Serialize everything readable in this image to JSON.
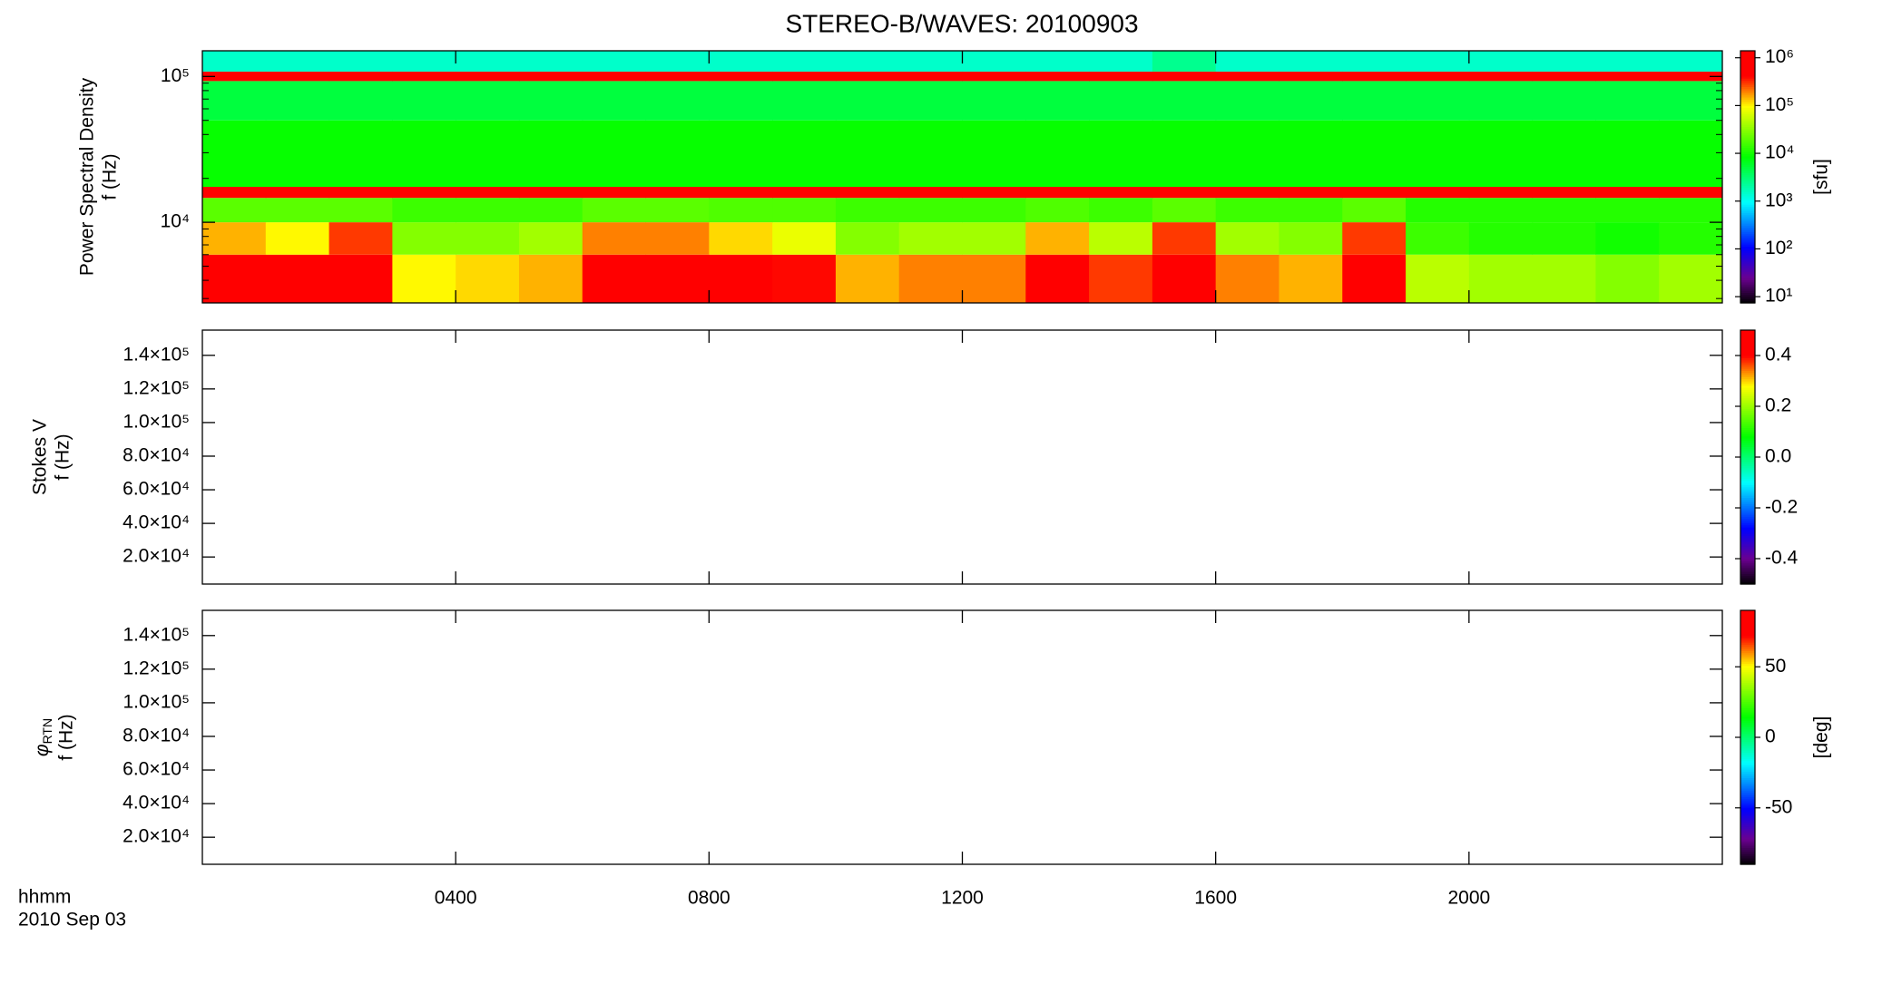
{
  "title": "STEREO-B/WAVES: 20100903",
  "x_title": "hhmm",
  "date": "2010 Sep 03",
  "chart_data": [
    {
      "type": "heatmap",
      "ylabel": [
        "Power Spectral Density",
        "f (Hz)"
      ],
      "xlim": [
        0,
        24
      ],
      "xticks": [
        4,
        8,
        12,
        16,
        20
      ],
      "ylim": [
        2800,
        150000
      ],
      "ylog": true,
      "yticks": [
        {
          "value": 10000,
          "label": "10⁴"
        },
        {
          "value": 100000,
          "label": "10⁵"
        }
      ],
      "yminorticks": [
        3000,
        4000,
        5000,
        6000,
        7000,
        8000,
        9000,
        20000,
        30000,
        40000,
        50000,
        60000,
        70000,
        80000,
        90000
      ],
      "colormap": "rainbow",
      "zlim": [
        7.4,
        1400000
      ],
      "zlog": true,
      "zticks": [
        {
          "value": 10,
          "label": "10¹"
        },
        {
          "value": 100,
          "label": "10²"
        },
        {
          "value": 1000,
          "label": "10³"
        },
        {
          "value": 10000,
          "label": "10⁴"
        },
        {
          "value": 100000,
          "label": "10⁵"
        },
        {
          "value": 1000000,
          "label": "10⁶"
        }
      ],
      "colorbar_label": "[sfu]",
      "time_bins": [
        0,
        1,
        2,
        3,
        4,
        5,
        6,
        7,
        8,
        9,
        10,
        11,
        12,
        13,
        14,
        15,
        16,
        17,
        18,
        19,
        20,
        21,
        22,
        23,
        24
      ],
      "freq_bins": [
        2800,
        6000,
        10000,
        14700,
        17500,
        50000,
        93000,
        108000,
        150000
      ],
      "values": [
        [
          500000,
          500000,
          600000,
          100000,
          120000,
          150000,
          600000,
          600000,
          500000,
          400000,
          150000,
          200000,
          200000,
          500000,
          300000,
          600000,
          200000,
          150000,
          600000,
          50000,
          40000,
          40000,
          30000,
          40000
        ],
        [
          150000,
          100000,
          300000,
          30000,
          30000,
          40000,
          200000,
          200000,
          120000,
          80000,
          30000,
          40000,
          40000,
          150000,
          50000,
          300000,
          40000,
          30000,
          300000,
          15000,
          12000,
          12000,
          10000,
          12000
        ],
        [
          20000,
          20000,
          20000,
          15000,
          15000,
          15000,
          20000,
          20000,
          18000,
          18000,
          15000,
          15000,
          15000,
          18000,
          15000,
          20000,
          15000,
          15000,
          20000,
          12000,
          12000,
          12000,
          12000,
          12000
        ],
        [
          600000,
          600000,
          600000,
          600000,
          600000,
          600000,
          600000,
          600000,
          600000,
          600000,
          600000,
          600000,
          600000,
          600000,
          600000,
          600000,
          600000,
          600000,
          600000,
          600000,
          600000,
          600000,
          600000,
          600000
        ],
        [
          9000,
          9000,
          9000,
          9000,
          9000,
          9000,
          9000,
          9000,
          9000,
          9000,
          9000,
          9000,
          9000,
          9000,
          9000,
          9000,
          9000,
          9000,
          9000,
          9000,
          9000,
          9000,
          9000,
          9000
        ],
        [
          5000,
          5000,
          5000,
          5000,
          5000,
          5000,
          5000,
          5000,
          5000,
          5000,
          5000,
          5000,
          5000,
          5000,
          5000,
          5000,
          5000,
          5000,
          5000,
          5000,
          5000,
          5000,
          5000,
          5000
        ],
        [
          600000,
          500000,
          600000,
          600000,
          500000,
          600000,
          600000,
          500000,
          600000,
          600000,
          500000,
          600000,
          600000,
          500000,
          600000,
          600000,
          500000,
          600000,
          600000,
          500000,
          600000,
          600000,
          500000,
          600000
        ],
        [
          1500,
          1500,
          1500,
          1500,
          1500,
          1500,
          1500,
          1500,
          1500,
          1500,
          1500,
          1500,
          1500,
          1500,
          1500,
          2500,
          1500,
          1500,
          1500,
          1500,
          1500,
          1500,
          1500,
          1500
        ]
      ]
    },
    {
      "type": "heatmap",
      "ylabel": [
        "Stokes V",
        "f (Hz)"
      ],
      "xlim": [
        0,
        24
      ],
      "xticks": [
        4,
        8,
        12,
        16,
        20
      ],
      "ylim": [
        3900,
        155000
      ],
      "yticks": [
        {
          "value": 20000,
          "label": "2.0×10⁴"
        },
        {
          "value": 40000,
          "label": "4.0×10⁴"
        },
        {
          "value": 60000,
          "label": "6.0×10⁴"
        },
        {
          "value": 80000,
          "label": "8.0×10⁴"
        },
        {
          "value": 100000,
          "label": "1.0×10⁵"
        },
        {
          "value": 120000,
          "label": "1.2×10⁵"
        },
        {
          "value": 140000,
          "label": "1.4×10⁵"
        }
      ],
      "colormap": "rainbow",
      "zlim": [
        -0.5,
        0.5
      ],
      "zticks": [
        -0.4,
        -0.2,
        {
          "value": 0,
          "label": "0.0"
        },
        0.2,
        0.4
      ]
    },
    {
      "type": "heatmap",
      "ylabel": [
        {
          "symbol": "φ",
          "subscript": "RTN"
        },
        "f (Hz)"
      ],
      "xlim": [
        0,
        24
      ],
      "xticks": [
        {
          "value": 4,
          "label": "0400"
        },
        {
          "value": 8,
          "label": "0800"
        },
        {
          "value": 12,
          "label": "1200"
        },
        {
          "value": 16,
          "label": "1600"
        },
        {
          "value": 20,
          "label": "2000"
        }
      ],
      "ylim": [
        3900,
        155000
      ],
      "yticks": [
        {
          "value": 20000,
          "label": "2.0×10⁴"
        },
        {
          "value": 40000,
          "label": "4.0×10⁴"
        },
        {
          "value": 60000,
          "label": "6.0×10⁴"
        },
        {
          "value": 80000,
          "label": "8.0×10⁴"
        },
        {
          "value": 100000,
          "label": "1.0×10⁵"
        },
        {
          "value": 120000,
          "label": "1.2×10⁵"
        },
        {
          "value": 140000,
          "label": "1.4×10⁵"
        }
      ],
      "colormap": "rainbow",
      "zlim": [
        -90,
        90
      ],
      "zticks": [
        -50,
        0,
        50
      ],
      "colorbar_label": "[deg]"
    }
  ]
}
